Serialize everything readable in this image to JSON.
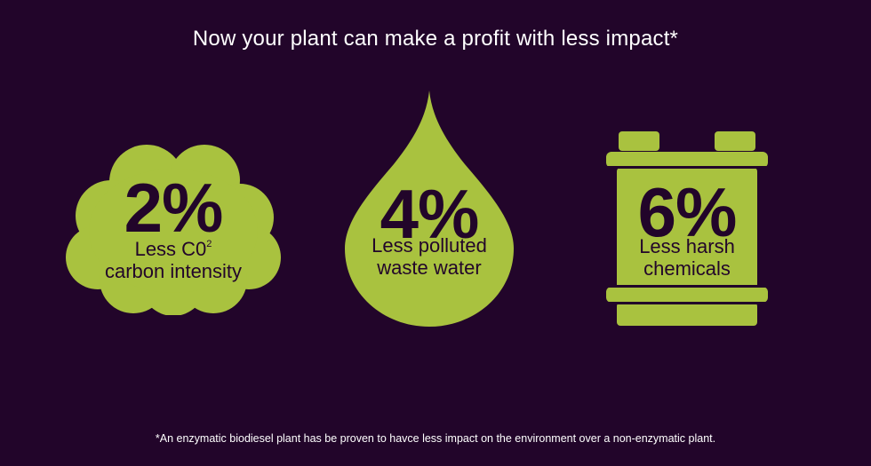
{
  "headline": "Now your plant can make a profit with less impact*",
  "colors": {
    "background": "#22052a",
    "accent": "#a9c23f",
    "text_light": "#ffffff",
    "text_dark": "#22052a"
  },
  "stats": [
    {
      "shape": "cloud-icon",
      "percent": "2%",
      "line1": "Less C0",
      "line1_superscript": "2",
      "line2": "carbon intensity"
    },
    {
      "shape": "water-drop-icon",
      "percent": "4%",
      "line1": "Less polluted",
      "line2": "waste water"
    },
    {
      "shape": "canister-icon",
      "percent": "6%",
      "line1": "Less harsh",
      "line2": "chemicals"
    }
  ],
  "footnote": "*An enzymatic biodiesel plant has be proven to havce less impact on the environment over a non-enzymatic plant."
}
